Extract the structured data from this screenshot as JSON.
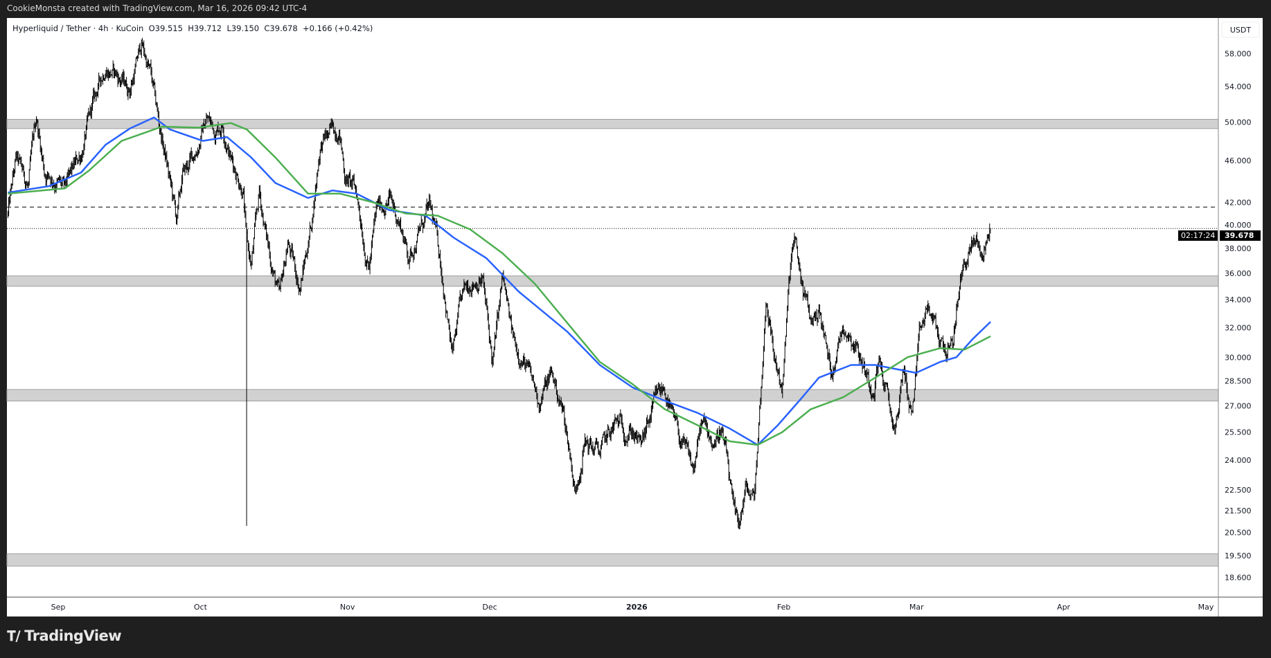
{
  "topbar": {
    "credit": "CookieMonsta created with TradingView.com, Mar 16, 2026 09:42 UTC-4"
  },
  "legend": {
    "symbol": "Hyperliquid / Tether · 4h · KuCoin",
    "open": "O39.515",
    "high": "H39.712",
    "low": "L39.150",
    "close": "C39.678",
    "change": "+0.166 (+0.42%)"
  },
  "axis": {
    "currency": "USDT",
    "last_price": "39.678",
    "countdown": "02:17:24"
  },
  "brand": {
    "name": "TradingView"
  },
  "colors": {
    "candles": "#000000",
    "ma_fast": "#2962ff",
    "ma_slow": "#4caf50",
    "zone": "#d1d1d1"
  },
  "chart_data": {
    "type": "candlestick",
    "title": "Hyperliquid / Tether · 4h · KuCoin",
    "scale": "log",
    "x_unit": "days since 2025-09-01",
    "xlim": [
      -10.8,
      244.5
    ],
    "ylim": [
      18.2,
      62.5
    ],
    "y_ticks": [
      "58.000",
      "54.000",
      "50.000",
      "46.000",
      "42.000",
      "40.000",
      "38.000",
      "36.000",
      "34.000",
      "32.000",
      "30.000",
      "28.500",
      "27.000",
      "25.500",
      "24.000",
      "22.500",
      "21.500",
      "20.500",
      "19.500",
      "18.600"
    ],
    "x_ticks": [
      {
        "label": "Sep",
        "day": 0
      },
      {
        "label": "Oct",
        "day": 30
      },
      {
        "label": "Nov",
        "day": 61
      },
      {
        "label": "Dec",
        "day": 91
      },
      {
        "label": "2026",
        "day": 122
      },
      {
        "label": "Feb",
        "day": 153
      },
      {
        "label": "Mar",
        "day": 181
      },
      {
        "label": "Apr",
        "day": 212
      },
      {
        "label": "May",
        "day": 242
      }
    ],
    "price_path": [
      [
        -10.6,
        40.9
      ],
      [
        -8.9,
        45.9
      ],
      [
        -6.3,
        43.5
      ],
      [
        -4.6,
        50.5
      ],
      [
        -2.9,
        45.0
      ],
      [
        -0.3,
        44.1
      ],
      [
        1.4,
        42.9
      ],
      [
        4.8,
        46.7
      ],
      [
        7.4,
        51.9
      ],
      [
        10.0,
        56.7
      ],
      [
        12.5,
        55.2
      ],
      [
        15.1,
        53.8
      ],
      [
        17.6,
        59.2
      ],
      [
        19.4,
        55.6
      ],
      [
        21.1,
        50.1
      ],
      [
        22.8,
        45.9
      ],
      [
        25.0,
        40.2
      ],
      [
        26.2,
        44.3
      ],
      [
        28.8,
        46.7
      ],
      [
        31.3,
        50.5
      ],
      [
        33.0,
        49.2
      ],
      [
        34.7,
        50.1
      ],
      [
        36.4,
        46.3
      ],
      [
        39.0,
        43.5
      ],
      [
        39.7,
        38.5
      ],
      [
        40.7,
        36.5
      ],
      [
        42.4,
        42.7
      ],
      [
        44.1,
        38.5
      ],
      [
        46.7,
        33.9
      ],
      [
        48.4,
        38.5
      ],
      [
        51.0,
        34.9
      ],
      [
        53.5,
        40.5
      ],
      [
        55.2,
        47.6
      ],
      [
        57.8,
        48.9
      ],
      [
        59.2,
        49.7
      ],
      [
        60.4,
        44.8
      ],
      [
        62.9,
        42.8
      ],
      [
        65.5,
        36.5
      ],
      [
        67.2,
        41.3
      ],
      [
        69.8,
        42.4
      ],
      [
        72.3,
        39.9
      ],
      [
        74.0,
        37.2
      ],
      [
        75.8,
        39.2
      ],
      [
        78.3,
        41.3
      ],
      [
        80.0,
        38.5
      ],
      [
        81.4,
        34.9
      ],
      [
        83.1,
        30.0
      ],
      [
        84.8,
        33.4
      ],
      [
        86.9,
        35.5
      ],
      [
        89.4,
        35.8
      ],
      [
        91.6,
        29.5
      ],
      [
        93.7,
        35.5
      ],
      [
        95.8,
        31.2
      ],
      [
        98.0,
        30.0
      ],
      [
        99.7,
        28.5
      ],
      [
        101.4,
        27.3
      ],
      [
        104.0,
        29.0
      ],
      [
        106.5,
        26.6
      ],
      [
        108.2,
        23.9
      ],
      [
        109.1,
        22.3
      ],
      [
        110.8,
        25.0
      ],
      [
        114.2,
        24.4
      ],
      [
        117.6,
        25.9
      ],
      [
        121.1,
        25.7
      ],
      [
        122.8,
        24.6
      ],
      [
        126.2,
        27.3
      ],
      [
        127.9,
        28.1
      ],
      [
        129.6,
        26.1
      ],
      [
        132.2,
        24.4
      ],
      [
        133.9,
        23.4
      ],
      [
        135.6,
        25.9
      ],
      [
        138.1,
        25.0
      ],
      [
        139.8,
        25.7
      ],
      [
        141.2,
        23.6
      ],
      [
        142.4,
        21.2
      ],
      [
        143.3,
        20.6
      ],
      [
        145.0,
        22.5
      ],
      [
        146.7,
        21.9
      ],
      [
        148.1,
        27.5
      ],
      [
        149.3,
        34.3
      ],
      [
        151.0,
        30.0
      ],
      [
        152.7,
        28.1
      ],
      [
        154.4,
        36.5
      ],
      [
        155.2,
        38.5
      ],
      [
        156.9,
        34.9
      ],
      [
        158.7,
        32.3
      ],
      [
        160.4,
        33.4
      ],
      [
        162.9,
        29.0
      ],
      [
        165.5,
        32.3
      ],
      [
        168.0,
        31.2
      ],
      [
        169.8,
        29.5
      ],
      [
        171.5,
        28.1
      ],
      [
        173.2,
        30.0
      ],
      [
        175.7,
        26.1
      ],
      [
        176.6,
        25.7
      ],
      [
        178.3,
        29.3
      ],
      [
        180.0,
        26.4
      ],
      [
        181.7,
        31.2
      ],
      [
        183.4,
        33.4
      ],
      [
        185.1,
        31.7
      ],
      [
        186.8,
        30.6
      ],
      [
        188.6,
        30.4
      ],
      [
        189.4,
        33.4
      ],
      [
        190.3,
        35.5
      ],
      [
        192.0,
        37.9
      ],
      [
        193.7,
        38.5
      ],
      [
        194.9,
        37.3
      ],
      [
        196.6,
        39.678
      ]
    ],
    "wick_events": [
      {
        "day": 39.7,
        "low": 20.8
      }
    ],
    "series": [
      {
        "name": "MA fast",
        "color": "#2962ff",
        "points": [
          [
            -10.6,
            42.9
          ],
          [
            -2.0,
            43.5
          ],
          [
            4.8,
            44.8
          ],
          [
            10,
            47.6
          ],
          [
            15.1,
            49.3
          ],
          [
            20.2,
            50.5
          ],
          [
            23.6,
            49.2
          ],
          [
            30.5,
            48.0
          ],
          [
            35.6,
            48.4
          ],
          [
            40.7,
            46.3
          ],
          [
            45.8,
            43.8
          ],
          [
            52.7,
            42.4
          ],
          [
            57.8,
            43.1
          ],
          [
            62.9,
            42.8
          ],
          [
            69.8,
            41.3
          ],
          [
            77.5,
            40.8
          ],
          [
            83.4,
            38.9
          ],
          [
            90.3,
            37.2
          ],
          [
            97.1,
            34.6
          ],
          [
            107.4,
            31.7
          ],
          [
            114.2,
            29.5
          ],
          [
            121.1,
            28.1
          ],
          [
            127.9,
            27.3
          ],
          [
            134.7,
            26.6
          ],
          [
            141.6,
            25.7
          ],
          [
            147.5,
            24.8
          ],
          [
            151.8,
            25.9
          ],
          [
            156.9,
            27.5
          ],
          [
            160.4,
            28.7
          ],
          [
            167.2,
            29.5
          ],
          [
            172.3,
            29.5
          ],
          [
            175.7,
            29.3
          ],
          [
            180.9,
            29.0
          ],
          [
            186.0,
            29.7
          ],
          [
            189.4,
            30.0
          ],
          [
            192.8,
            31.2
          ],
          [
            196.6,
            32.4
          ]
        ]
      },
      {
        "name": "MA slow",
        "color": "#4caf50",
        "points": [
          [
            -10.6,
            42.8
          ],
          [
            1.4,
            43.3
          ],
          [
            6.5,
            45.0
          ],
          [
            13.4,
            48.0
          ],
          [
            21.9,
            49.5
          ],
          [
            29.6,
            49.4
          ],
          [
            36.4,
            49.9
          ],
          [
            39.8,
            49.2
          ],
          [
            45.8,
            46.3
          ],
          [
            52.7,
            42.8
          ],
          [
            59.5,
            42.8
          ],
          [
            66.4,
            42.0
          ],
          [
            73.2,
            41.0
          ],
          [
            80.0,
            40.8
          ],
          [
            86.9,
            39.6
          ],
          [
            93.7,
            37.6
          ],
          [
            100.5,
            35.2
          ],
          [
            107.4,
            32.3
          ],
          [
            114.2,
            29.7
          ],
          [
            121.1,
            28.3
          ],
          [
            127.9,
            26.8
          ],
          [
            134.7,
            25.9
          ],
          [
            141.6,
            25.0
          ],
          [
            147.5,
            24.8
          ],
          [
            152.7,
            25.5
          ],
          [
            158.7,
            26.8
          ],
          [
            165.5,
            27.5
          ],
          [
            172.3,
            28.7
          ],
          [
            179.1,
            30.0
          ],
          [
            186.0,
            30.6
          ],
          [
            191.1,
            30.5
          ],
          [
            196.6,
            31.4
          ]
        ]
      }
    ],
    "zones": [
      [
        49.3,
        50.3
      ],
      [
        35.0,
        35.8
      ],
      [
        27.28,
        27.97
      ],
      [
        19.06,
        19.58
      ]
    ],
    "levels": [
      {
        "price": 41.57,
        "style": "dashed"
      },
      {
        "price": 39.678,
        "style": "dotted"
      }
    ]
  }
}
